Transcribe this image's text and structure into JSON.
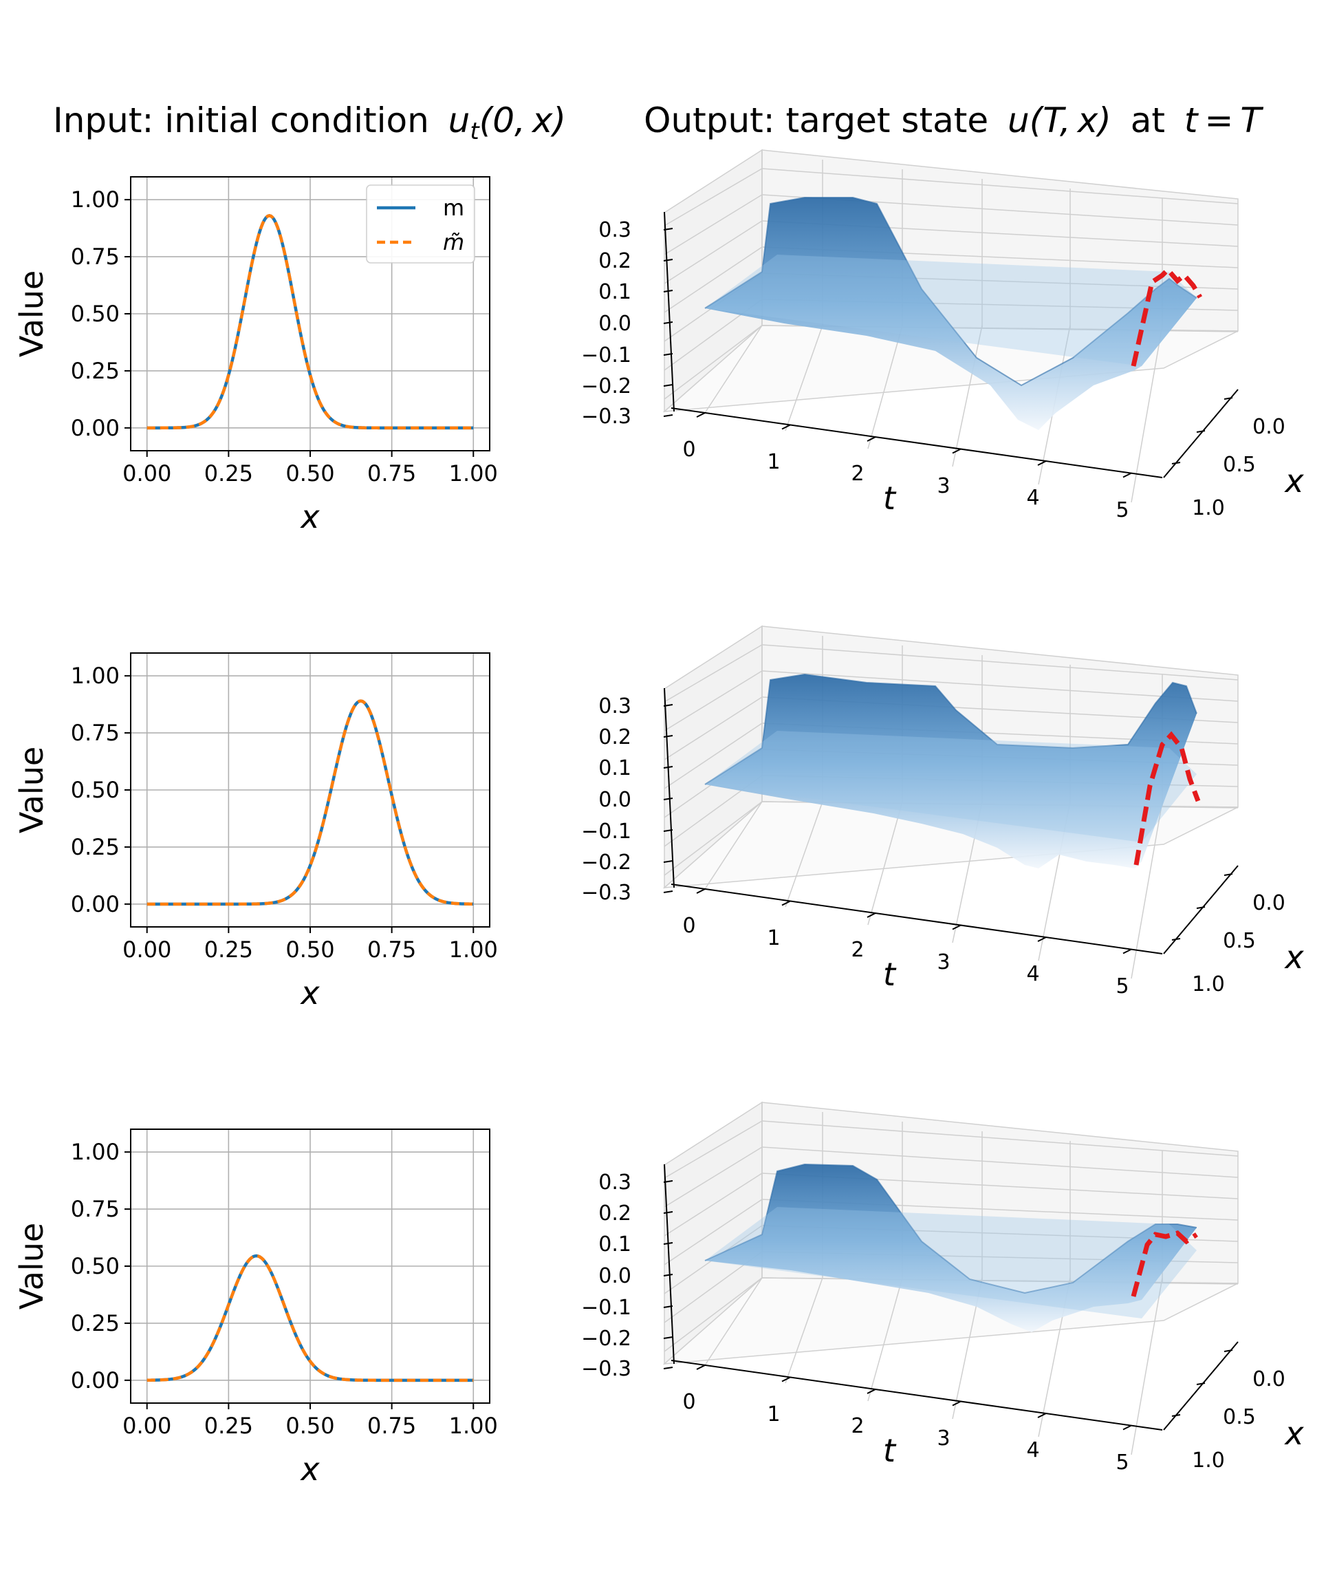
{
  "titles": {
    "left": "Input: initial condition",
    "left_math": "u",
    "left_sub": "t",
    "left_args": "(0, x)",
    "right": "Output: target state",
    "right_math": "u",
    "right_args": "(T, x)",
    "right_tail": "at",
    "right_eq": "t = T"
  },
  "legend": {
    "m": "m",
    "m_tilde": "m̃"
  },
  "colors": {
    "m": "#1f77b4",
    "m_tilde": "#ff7f0e",
    "target": "#e41a1c",
    "surface_dark": "#2b6aa6",
    "surface_light": "#deebf7"
  },
  "chart_data": [
    {
      "type": "line",
      "panel": "input-row-1",
      "xlabel": "x",
      "ylabel": "Value",
      "xlim": [
        -0.05,
        1.05
      ],
      "ylim": [
        -0.1,
        1.1
      ],
      "xticks": [
        "0.00",
        "0.25",
        "0.50",
        "0.75",
        "1.00"
      ],
      "yticks": [
        "0.00",
        "0.25",
        "0.50",
        "0.75",
        "1.00"
      ],
      "grid": true,
      "legend_position": "top-right",
      "curve": {
        "peak_x": 0.375,
        "peak_y": 0.93,
        "width": 0.075
      },
      "series": [
        {
          "name": "m"
        },
        {
          "name": "m̃"
        }
      ]
    },
    {
      "type": "line",
      "panel": "input-row-2",
      "xlabel": "x",
      "ylabel": "Value",
      "xlim": [
        -0.05,
        1.05
      ],
      "ylim": [
        -0.1,
        1.1
      ],
      "xticks": [
        "0.00",
        "0.25",
        "0.50",
        "0.75",
        "1.00"
      ],
      "yticks": [
        "0.00",
        "0.25",
        "0.50",
        "0.75",
        "1.00"
      ],
      "grid": true,
      "curve": {
        "peak_x": 0.655,
        "peak_y": 0.89,
        "width": 0.085
      },
      "series": [
        {
          "name": "m"
        },
        {
          "name": "m̃"
        }
      ]
    },
    {
      "type": "line",
      "panel": "input-row-3",
      "xlabel": "x",
      "ylabel": "Value",
      "xlim": [
        -0.05,
        1.05
      ],
      "ylim": [
        -0.1,
        1.1
      ],
      "xticks": [
        "0.00",
        "0.25",
        "0.50",
        "0.75",
        "1.00"
      ],
      "yticks": [
        "0.00",
        "0.25",
        "0.50",
        "0.75",
        "1.00"
      ],
      "grid": true,
      "curve": {
        "peak_x": 0.335,
        "peak_y": 0.545,
        "width": 0.085
      },
      "series": [
        {
          "name": "m"
        },
        {
          "name": "m̃"
        }
      ]
    },
    {
      "type": "surface",
      "panel": "output-row-1",
      "xlabel": "t",
      "ylabel": "x",
      "xticks": [
        "0",
        "1",
        "2",
        "3",
        "4",
        "5"
      ],
      "yticks": [
        "0.0",
        "0.5",
        "1.0"
      ],
      "zticks": [
        "−0.3",
        "−0.2",
        "−0.1",
        "0.0",
        "0.1",
        "0.2",
        "0.3"
      ],
      "xlim": [
        0,
        5
      ],
      "ylim": [
        0,
        1
      ],
      "zlim": [
        -0.3,
        0.3
      ]
    },
    {
      "type": "surface",
      "panel": "output-row-2",
      "xlabel": "t",
      "ylabel": "x",
      "xticks": [
        "0",
        "1",
        "2",
        "3",
        "4",
        "5"
      ],
      "yticks": [
        "0.0",
        "0.5",
        "1.0"
      ],
      "zticks": [
        "−0.3",
        "−0.2",
        "−0.1",
        "0.0",
        "0.1",
        "0.2",
        "0.3"
      ],
      "xlim": [
        0,
        5
      ],
      "ylim": [
        0,
        1
      ],
      "zlim": [
        -0.3,
        0.3
      ]
    },
    {
      "type": "surface",
      "panel": "output-row-3",
      "xlabel": "t",
      "ylabel": "x",
      "xticks": [
        "0",
        "1",
        "2",
        "3",
        "4",
        "5"
      ],
      "yticks": [
        "0.0",
        "0.5",
        "1.0"
      ],
      "zticks": [
        "−0.3",
        "−0.2",
        "−0.1",
        "0.0",
        "0.1",
        "0.2",
        "0.3"
      ],
      "xlim": [
        0,
        5
      ],
      "ylim": [
        0,
        1
      ],
      "zlim": [
        -0.3,
        0.3
      ]
    }
  ]
}
